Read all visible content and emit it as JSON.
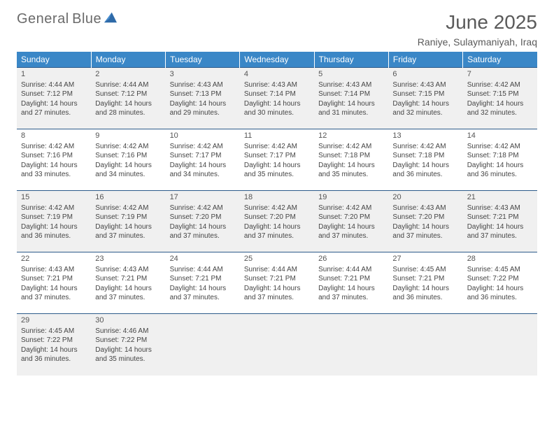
{
  "logo": {
    "line1": "General",
    "line2": "Blue"
  },
  "title": "June 2025",
  "location": "Raniye, Sulaymaniyah, Iraq",
  "header_bg": "#3a87c7",
  "header_fg": "#ffffff",
  "row_border": "#2c5a8a",
  "alt_row_bg": "#f0f0f0",
  "text_color": "#454545",
  "columns": [
    "Sunday",
    "Monday",
    "Tuesday",
    "Wednesday",
    "Thursday",
    "Friday",
    "Saturday"
  ],
  "weeks": [
    [
      {
        "n": "1",
        "sr": "4:44 AM",
        "ss": "7:12 PM",
        "dl": "14 hours and 27 minutes."
      },
      {
        "n": "2",
        "sr": "4:44 AM",
        "ss": "7:12 PM",
        "dl": "14 hours and 28 minutes."
      },
      {
        "n": "3",
        "sr": "4:43 AM",
        "ss": "7:13 PM",
        "dl": "14 hours and 29 minutes."
      },
      {
        "n": "4",
        "sr": "4:43 AM",
        "ss": "7:14 PM",
        "dl": "14 hours and 30 minutes."
      },
      {
        "n": "5",
        "sr": "4:43 AM",
        "ss": "7:14 PM",
        "dl": "14 hours and 31 minutes."
      },
      {
        "n": "6",
        "sr": "4:43 AM",
        "ss": "7:15 PM",
        "dl": "14 hours and 32 minutes."
      },
      {
        "n": "7",
        "sr": "4:42 AM",
        "ss": "7:15 PM",
        "dl": "14 hours and 32 minutes."
      }
    ],
    [
      {
        "n": "8",
        "sr": "4:42 AM",
        "ss": "7:16 PM",
        "dl": "14 hours and 33 minutes."
      },
      {
        "n": "9",
        "sr": "4:42 AM",
        "ss": "7:16 PM",
        "dl": "14 hours and 34 minutes."
      },
      {
        "n": "10",
        "sr": "4:42 AM",
        "ss": "7:17 PM",
        "dl": "14 hours and 34 minutes."
      },
      {
        "n": "11",
        "sr": "4:42 AM",
        "ss": "7:17 PM",
        "dl": "14 hours and 35 minutes."
      },
      {
        "n": "12",
        "sr": "4:42 AM",
        "ss": "7:18 PM",
        "dl": "14 hours and 35 minutes."
      },
      {
        "n": "13",
        "sr": "4:42 AM",
        "ss": "7:18 PM",
        "dl": "14 hours and 36 minutes."
      },
      {
        "n": "14",
        "sr": "4:42 AM",
        "ss": "7:18 PM",
        "dl": "14 hours and 36 minutes."
      }
    ],
    [
      {
        "n": "15",
        "sr": "4:42 AM",
        "ss": "7:19 PM",
        "dl": "14 hours and 36 minutes."
      },
      {
        "n": "16",
        "sr": "4:42 AM",
        "ss": "7:19 PM",
        "dl": "14 hours and 37 minutes."
      },
      {
        "n": "17",
        "sr": "4:42 AM",
        "ss": "7:20 PM",
        "dl": "14 hours and 37 minutes."
      },
      {
        "n": "18",
        "sr": "4:42 AM",
        "ss": "7:20 PM",
        "dl": "14 hours and 37 minutes."
      },
      {
        "n": "19",
        "sr": "4:42 AM",
        "ss": "7:20 PM",
        "dl": "14 hours and 37 minutes."
      },
      {
        "n": "20",
        "sr": "4:43 AM",
        "ss": "7:20 PM",
        "dl": "14 hours and 37 minutes."
      },
      {
        "n": "21",
        "sr": "4:43 AM",
        "ss": "7:21 PM",
        "dl": "14 hours and 37 minutes."
      }
    ],
    [
      {
        "n": "22",
        "sr": "4:43 AM",
        "ss": "7:21 PM",
        "dl": "14 hours and 37 minutes."
      },
      {
        "n": "23",
        "sr": "4:43 AM",
        "ss": "7:21 PM",
        "dl": "14 hours and 37 minutes."
      },
      {
        "n": "24",
        "sr": "4:44 AM",
        "ss": "7:21 PM",
        "dl": "14 hours and 37 minutes."
      },
      {
        "n": "25",
        "sr": "4:44 AM",
        "ss": "7:21 PM",
        "dl": "14 hours and 37 minutes."
      },
      {
        "n": "26",
        "sr": "4:44 AM",
        "ss": "7:21 PM",
        "dl": "14 hours and 37 minutes."
      },
      {
        "n": "27",
        "sr": "4:45 AM",
        "ss": "7:21 PM",
        "dl": "14 hours and 36 minutes."
      },
      {
        "n": "28",
        "sr": "4:45 AM",
        "ss": "7:22 PM",
        "dl": "14 hours and 36 minutes."
      }
    ],
    [
      {
        "n": "29",
        "sr": "4:45 AM",
        "ss": "7:22 PM",
        "dl": "14 hours and 36 minutes."
      },
      {
        "n": "30",
        "sr": "4:46 AM",
        "ss": "7:22 PM",
        "dl": "14 hours and 35 minutes."
      },
      null,
      null,
      null,
      null,
      null
    ]
  ],
  "labels": {
    "sunrise": "Sunrise:",
    "sunset": "Sunset:",
    "daylight": "Daylight:"
  }
}
